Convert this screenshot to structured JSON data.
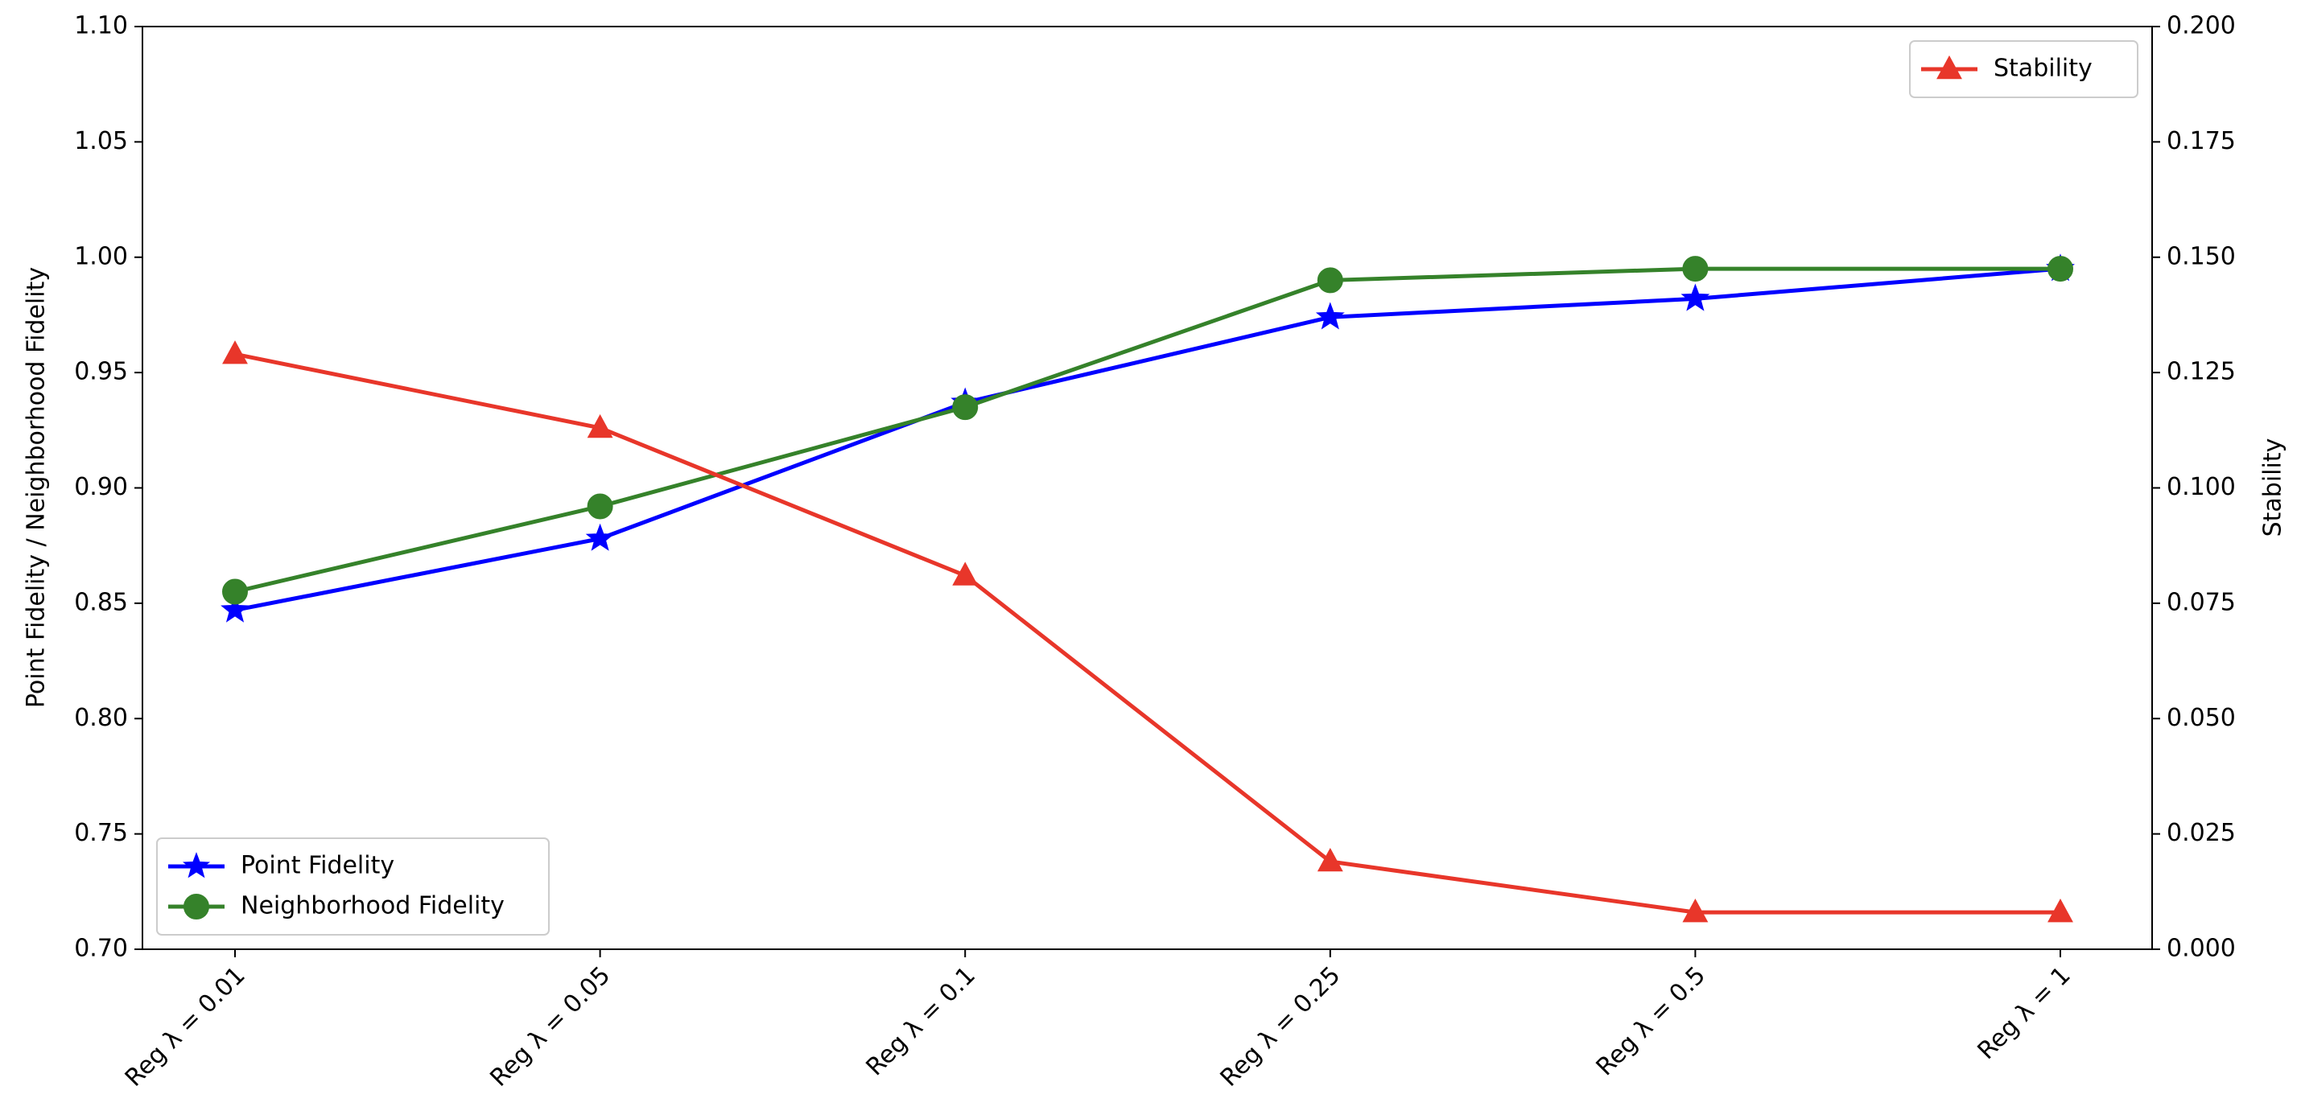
{
  "chart_data": {
    "type": "line",
    "categories": [
      "Reg λ = 0.01",
      "Reg λ = 0.05",
      "Reg λ = 0.1",
      "Reg λ = 0.25",
      "Reg λ = 0.5",
      "Reg λ = 1"
    ],
    "series": [
      {
        "name": "Point Fidelity",
        "color": "#0000ff",
        "marker": "star",
        "values": [
          0.847,
          0.878,
          0.937,
          0.974,
          0.982,
          0.995
        ]
      },
      {
        "name": "Neighborhood Fidelity",
        "color": "#35822a",
        "marker": "circle",
        "values": [
          0.855,
          0.892,
          0.935,
          0.99,
          0.995,
          0.995
        ]
      },
      {
        "name": "Stability",
        "color": "#e8362a",
        "marker": "triangle",
        "axis": "y2",
        "values": [
          0.129,
          0.113,
          0.081,
          0.019,
          0.008,
          0.008
        ]
      }
    ],
    "ylabel": "Point Fidelity / Neighborhood Fidelity",
    "y2label": "Stability",
    "ylim": [
      0.7,
      1.1
    ],
    "yticks": [
      {
        "value": 0.7,
        "label": "0.70"
      },
      {
        "value": 0.75,
        "label": "0.75"
      },
      {
        "value": 0.8,
        "label": "0.80"
      },
      {
        "value": 0.85,
        "label": "0.85"
      },
      {
        "value": 0.9,
        "label": "0.90"
      },
      {
        "value": 0.95,
        "label": "0.95"
      },
      {
        "value": 1.0,
        "label": "1.00"
      },
      {
        "value": 1.05,
        "label": "1.05"
      },
      {
        "value": 1.1,
        "label": "1.10"
      }
    ],
    "y2lim": [
      0,
      0.2
    ],
    "y2ticks": [
      {
        "value": 0,
        "label": "0.000"
      },
      {
        "value": 0.025,
        "label": "0.025"
      },
      {
        "value": 0.05,
        "label": "0.050"
      },
      {
        "value": 0.075,
        "label": "0.075"
      },
      {
        "value": 0.1,
        "label": "0.100"
      },
      {
        "value": 0.125,
        "label": "0.125"
      },
      {
        "value": 0.15,
        "label": "0.150"
      },
      {
        "value": 0.175,
        "label": "0.175"
      },
      {
        "value": 0.2,
        "label": "0.200"
      }
    ],
    "legend_loc": "lower left",
    "legend2_loc": "upper right"
  }
}
